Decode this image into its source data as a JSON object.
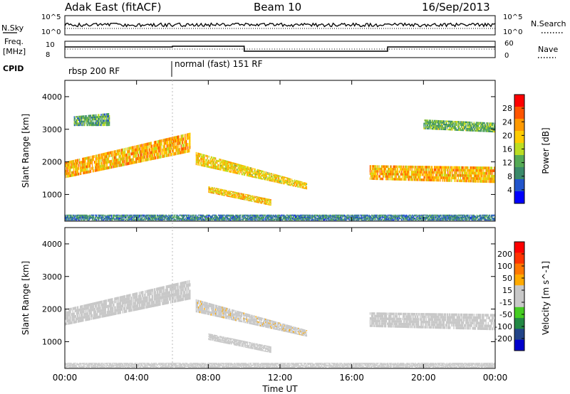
{
  "header": {
    "station": "Adak East (fitACF)",
    "beam": "Beam 10",
    "date": "16/Sep/2013"
  },
  "noise_panel": {
    "left_label": "N.Sky",
    "left_ticks": [
      "10^5",
      "10^0"
    ],
    "right_ticks": [
      "10^5",
      "10^0"
    ],
    "right_label": "N.Search"
  },
  "freq_panel": {
    "left_label_1": "Freq.",
    "left_label_2": "[MHz]",
    "left_ticks": [
      "10",
      "8"
    ],
    "right_ticks": [
      "60",
      "0"
    ],
    "right_label": "Nave"
  },
  "cpid": {
    "label": "CPID",
    "segments": [
      {
        "text": "rbsp 200 RF",
        "start_hour": 0
      },
      {
        "text": "normal (fast) 151 RF",
        "start_hour": 6
      }
    ]
  },
  "colors": {
    "power_scale": [
      "#0000ff",
      "#2255cc",
      "#3a8a6a",
      "#55aa55",
      "#bbdd22",
      "#ffcc00",
      "#ff9900",
      "#ff5500",
      "#ff0000"
    ],
    "velocity_scale": [
      "#0000cc",
      "#224488",
      "#228844",
      "#44cc22",
      "#c8c8c8",
      "#c8c8c8",
      "#ffaa00",
      "#ff7700",
      "#ff3300",
      "#ff0000"
    ]
  },
  "chart_data": [
    {
      "type": "heatmap",
      "title": "Power",
      "xlabel": "Time UT",
      "ylabel": "Slant Range [km]",
      "x_ticks": [
        "00:00",
        "04:00",
        "08:00",
        "12:00",
        "16:00",
        "20:00",
        "00:00"
      ],
      "xlim_hours": [
        0,
        24
      ],
      "y_ticks": [
        "1000",
        "2000",
        "3000",
        "4000"
      ],
      "ylim": [
        180,
        4500
      ],
      "colorbar": {
        "label": "Power [dB]",
        "ticks": [
          "4",
          "8",
          "12",
          "16",
          "20",
          "24",
          "28"
        ],
        "range": [
          0,
          30
        ]
      },
      "regions": [
        {
          "t0": 0.0,
          "t1": 7.0,
          "r0": 1500,
          "r1": 2000,
          "r0_end": 2300,
          "r1_end": 2900,
          "value": 20
        },
        {
          "t0": 7.3,
          "t1": 13.5,
          "r0": 1900,
          "r1": 2300,
          "r0_end": 1150,
          "r1_end": 1350,
          "value": 18
        },
        {
          "t0": 8.0,
          "t1": 11.5,
          "r0": 1050,
          "r1": 1250,
          "r0_end": 650,
          "r1_end": 850,
          "value": 19
        },
        {
          "t0": 17.0,
          "t1": 24.0,
          "r0": 1450,
          "r1": 1900,
          "r0_end": 1350,
          "r1_end": 1850,
          "value": 20
        },
        {
          "t0": 0.0,
          "t1": 24.0,
          "r0": 200,
          "r1": 380,
          "r0_end": 200,
          "r1_end": 380,
          "value": 8
        },
        {
          "t0": 0.5,
          "t1": 2.5,
          "r0": 3100,
          "r1": 3400,
          "r0_end": 3100,
          "r1_end": 3500,
          "value": 10
        },
        {
          "t0": 20.0,
          "t1": 24.0,
          "r0": 3000,
          "r1": 3300,
          "r0_end": 2900,
          "r1_end": 3200,
          "value": 12
        }
      ]
    },
    {
      "type": "heatmap",
      "title": "Velocity",
      "xlabel": "Time UT",
      "ylabel": "Slant Range [km]",
      "x_ticks": [
        "00:00",
        "04:00",
        "08:00",
        "12:00",
        "16:00",
        "20:00",
        "00:00"
      ],
      "xlim_hours": [
        0,
        24
      ],
      "y_ticks": [
        "1000",
        "2000",
        "3000",
        "4000"
      ],
      "ylim": [
        180,
        4500
      ],
      "colorbar": {
        "label": "Velocity [m s^-1]",
        "ticks": [
          "200",
          "100",
          "50",
          "15",
          "-15",
          "-50",
          "-100",
          "-200"
        ],
        "range": [
          -250,
          250
        ]
      },
      "regions": [
        {
          "t0": 0.0,
          "t1": 7.0,
          "r0": 1500,
          "r1": 2000,
          "r0_end": 2300,
          "r1_end": 2900,
          "value": 0
        },
        {
          "t0": 7.3,
          "t1": 13.5,
          "r0": 1900,
          "r1": 2300,
          "r0_end": 1150,
          "r1_end": 1350,
          "value": 40
        },
        {
          "t0": 8.0,
          "t1": 11.5,
          "r0": 1050,
          "r1": 1250,
          "r0_end": 650,
          "r1_end": 850,
          "value": 30
        },
        {
          "t0": 17.0,
          "t1": 24.0,
          "r0": 1450,
          "r1": 1900,
          "r0_end": 1350,
          "r1_end": 1850,
          "value": 0
        },
        {
          "t0": 0.0,
          "t1": 24.0,
          "r0": 200,
          "r1": 350,
          "r0_end": 200,
          "r1_end": 350,
          "value": 35
        }
      ]
    }
  ]
}
